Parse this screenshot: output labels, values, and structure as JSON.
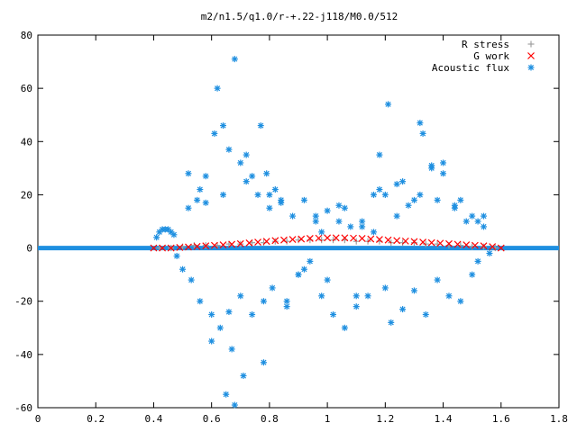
{
  "chart_data": {
    "type": "scatter",
    "title": "m2/n1.5/q1.0/r-+.22-j118/M0.0/512",
    "xlabel": "",
    "ylabel": "",
    "xlim": [
      0,
      1.8
    ],
    "ylim": [
      -60,
      80
    ],
    "x_ticks": [
      "0",
      "0.2",
      "0.4",
      "0.6",
      "0.8",
      "1",
      "1.2",
      "1.4",
      "1.6",
      "1.8"
    ],
    "y_ticks": [
      "-60",
      "-40",
      "-20",
      "0",
      "20",
      "40",
      "60",
      "80"
    ],
    "grid": false,
    "legend_position": "top-right",
    "series": [
      {
        "name": "R stress",
        "marker": "plus",
        "color": "#a0a0a0",
        "x": [
          0.42,
          0.46,
          0.5,
          0.54,
          0.58,
          0.62,
          0.66,
          0.7,
          0.74,
          0.78,
          0.82,
          0.86,
          0.9,
          0.94,
          0.98,
          1.02,
          1.06,
          1.1,
          1.14,
          1.18,
          1.22,
          1.26,
          1.3,
          1.34,
          1.38,
          1.42,
          1.46,
          1.5,
          1.54,
          1.58
        ],
        "y": [
          0.0,
          0.0,
          0.5,
          1.0,
          1.0,
          1.0,
          1.5,
          1.5,
          2.0,
          2.0,
          2.5,
          2.5,
          3.0,
          3.0,
          3.0,
          3.0,
          3.0,
          2.5,
          2.5,
          2.5,
          2.0,
          2.0,
          2.0,
          1.5,
          1.5,
          1.0,
          1.0,
          0.5,
          0.5,
          0.0
        ]
      },
      {
        "name": "G work",
        "marker": "cross",
        "color": "#ff0000",
        "x": [
          0.4,
          0.43,
          0.46,
          0.49,
          0.52,
          0.55,
          0.58,
          0.61,
          0.64,
          0.67,
          0.7,
          0.73,
          0.76,
          0.79,
          0.82,
          0.85,
          0.88,
          0.91,
          0.94,
          0.97,
          1.0,
          1.03,
          1.06,
          1.09,
          1.12,
          1.15,
          1.18,
          1.21,
          1.24,
          1.27,
          1.3,
          1.33,
          1.36,
          1.39,
          1.42,
          1.45,
          1.48,
          1.51,
          1.54,
          1.57,
          1.6
        ],
        "y": [
          0.0,
          0.0,
          0.0,
          0.2,
          0.4,
          0.6,
          0.8,
          1.0,
          1.2,
          1.4,
          1.6,
          1.9,
          2.2,
          2.5,
          2.8,
          3.0,
          3.2,
          3.4,
          3.6,
          3.7,
          3.8,
          3.8,
          3.8,
          3.7,
          3.6,
          3.4,
          3.2,
          3.0,
          2.8,
          2.6,
          2.4,
          2.2,
          2.0,
          1.8,
          1.6,
          1.4,
          1.2,
          1.0,
          0.8,
          0.5,
          0.0
        ]
      },
      {
        "name": "Acoustic flux",
        "marker": "star",
        "color": "#1e8fe0",
        "x": [
          0.41,
          0.42,
          0.43,
          0.44,
          0.45,
          0.46,
          0.47,
          0.48,
          0.5,
          0.52,
          0.53,
          0.55,
          0.56,
          0.58,
          0.6,
          0.61,
          0.62,
          0.63,
          0.64,
          0.65,
          0.66,
          0.67,
          0.68,
          0.68,
          0.7,
          0.71,
          0.72,
          0.74,
          0.76,
          0.77,
          0.78,
          0.79,
          0.8,
          0.81,
          0.82,
          0.84,
          0.86,
          0.88,
          0.9,
          0.92,
          0.94,
          0.96,
          0.98,
          1.0,
          1.02,
          1.04,
          1.06,
          1.08,
          1.1,
          1.12,
          1.14,
          1.16,
          1.18,
          1.2,
          1.21,
          1.22,
          1.24,
          1.26,
          1.28,
          1.3,
          1.32,
          1.33,
          1.34,
          1.36,
          1.38,
          1.4,
          1.42,
          1.44,
          1.46,
          1.48,
          1.5,
          1.52,
          1.54,
          1.56,
          0.52,
          0.56,
          0.6,
          0.64,
          0.7,
          0.74,
          0.8,
          0.86,
          0.9,
          0.96,
          1.0,
          1.06,
          1.1,
          1.16,
          1.2,
          1.26,
          1.3,
          1.36,
          1.4,
          1.46,
          1.5,
          1.54,
          0.58,
          0.66,
          0.72,
          0.78,
          0.84,
          0.92,
          0.98,
          1.04,
          1.12,
          1.18,
          1.24,
          1.32,
          1.38,
          1.44,
          1.52
        ],
        "y": [
          4,
          6,
          7,
          7,
          7,
          6,
          5,
          -3,
          -8,
          15,
          -12,
          18,
          -20,
          27,
          -25,
          43,
          60,
          -30,
          46,
          -55,
          37,
          -38,
          71,
          -59,
          32,
          -48,
          35,
          27,
          20,
          46,
          -43,
          28,
          15,
          -15,
          22,
          17,
          -22,
          12,
          -10,
          18,
          -5,
          12,
          -18,
          14,
          -25,
          16,
          -30,
          8,
          -22,
          10,
          -18,
          6,
          22,
          20,
          54,
          -28,
          24,
          -23,
          16,
          18,
          47,
          43,
          -25,
          30,
          -12,
          32,
          -18,
          15,
          -20,
          10,
          12,
          -5,
          12,
          -2,
          28,
          22,
          -35,
          20,
          -18,
          -25,
          20,
          -20,
          -10,
          10,
          -12,
          15,
          -18,
          20,
          -15,
          25,
          -16,
          31,
          28,
          18,
          -10,
          8,
          17,
          -24,
          25,
          -20,
          18,
          -8,
          6,
          10,
          8,
          35,
          12,
          20,
          18,
          16,
          10
        ]
      }
    ]
  }
}
